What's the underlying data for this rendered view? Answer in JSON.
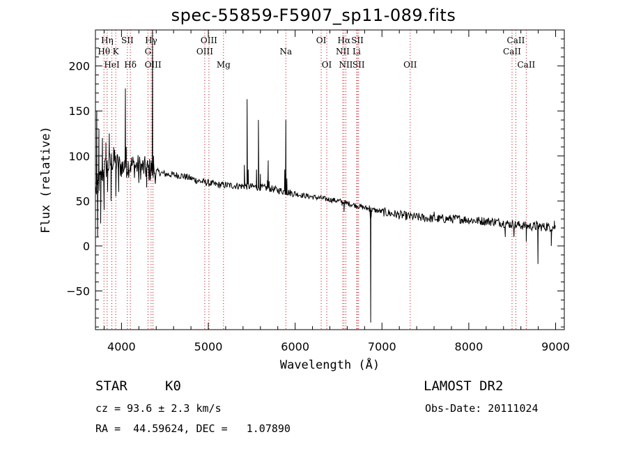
{
  "chart_data": {
    "type": "line",
    "title": "spec-55859-F5907_sp11-089.fits",
    "xlabel": "Wavelength (Å)",
    "ylabel": "Flux (relative)",
    "xlim": [
      3700,
      9100
    ],
    "ylim": [
      -93,
      240
    ],
    "xticks": [
      4000,
      5000,
      6000,
      7000,
      8000,
      9000
    ],
    "yticks": [
      -50,
      0,
      50,
      100,
      150,
      200
    ],
    "continuum": {
      "x": [
        3700,
        3800,
        3900,
        4000,
        4100,
        4200,
        4300,
        4500,
        4700,
        4900,
        5100,
        5300,
        5500,
        5700,
        5900,
        6100,
        6300,
        6500,
        6700,
        6900,
        7100,
        7300,
        7500,
        7700,
        7900,
        8100,
        8300,
        8500,
        8700,
        8900,
        9000
      ],
      "y": [
        60,
        85,
        95,
        88,
        90,
        88,
        85,
        80,
        78,
        72,
        68,
        67,
        66,
        64,
        60,
        56,
        53,
        50,
        45,
        40,
        36,
        33,
        31,
        30,
        30,
        28,
        27,
        24,
        22,
        21,
        21
      ]
    },
    "features": [
      {
        "x": 3715,
        "y": 150
      },
      {
        "x": 3725,
        "y": 10
      },
      {
        "x": 3740,
        "y": 130
      },
      {
        "x": 3760,
        "y": 25
      },
      {
        "x": 3780,
        "y": 120
      },
      {
        "x": 3800,
        "y": 40
      },
      {
        "x": 3820,
        "y": 115
      },
      {
        "x": 3840,
        "y": 60
      },
      {
        "x": 3860,
        "y": 125
      },
      {
        "x": 3880,
        "y": 50
      },
      {
        "x": 3910,
        "y": 110
      },
      {
        "x": 3935,
        "y": 55
      },
      {
        "x": 3968,
        "y": 60
      },
      {
        "x": 4010,
        "y": 80
      },
      {
        "x": 4035,
        "y": 95
      },
      {
        "x": 4045,
        "y": 175
      },
      {
        "x": 4055,
        "y": 110
      },
      {
        "x": 4101,
        "y": 90
      },
      {
        "x": 4200,
        "y": 70
      },
      {
        "x": 4290,
        "y": 65
      },
      {
        "x": 4340,
        "y": 95
      },
      {
        "x": 4357,
        "y": 240
      },
      {
        "x": 4370,
        "y": 100
      },
      {
        "x": 5415,
        "y": 90
      },
      {
        "x": 5447,
        "y": 163
      },
      {
        "x": 5460,
        "y": 85
      },
      {
        "x": 5555,
        "y": 85
      },
      {
        "x": 5577,
        "y": 140
      },
      {
        "x": 5600,
        "y": 80
      },
      {
        "x": 5680,
        "y": 73
      },
      {
        "x": 5690,
        "y": 95
      },
      {
        "x": 5700,
        "y": 72
      },
      {
        "x": 5880,
        "y": 85
      },
      {
        "x": 5893,
        "y": 140
      },
      {
        "x": 5905,
        "y": 75
      },
      {
        "x": 6540,
        "y": 45
      },
      {
        "x": 6563,
        "y": 38
      },
      {
        "x": 6585,
        "y": 46
      },
      {
        "x": 6855,
        "y": 45
      },
      {
        "x": 6866,
        "y": 30
      },
      {
        "x": 6870,
        "y": -85
      },
      {
        "x": 6876,
        "y": 32
      },
      {
        "x": 6890,
        "y": 42
      },
      {
        "x": 7600,
        "y": 38
      },
      {
        "x": 7640,
        "y": 27
      },
      {
        "x": 8400,
        "y": 27
      },
      {
        "x": 8420,
        "y": 10
      },
      {
        "x": 8440,
        "y": 25
      },
      {
        "x": 8520,
        "y": 10
      },
      {
        "x": 8540,
        "y": 20
      },
      {
        "x": 8650,
        "y": 25
      },
      {
        "x": 8662,
        "y": 5
      },
      {
        "x": 8672,
        "y": 22
      },
      {
        "x": 8780,
        "y": 28
      },
      {
        "x": 8797,
        "y": -20
      },
      {
        "x": 8815,
        "y": 25
      },
      {
        "x": 8900,
        "y": 26
      },
      {
        "x": 8950,
        "y": 0
      },
      {
        "x": 8985,
        "y": 28
      }
    ],
    "noise": [
      {
        "range": [
          3700,
          4400
        ],
        "amplitude": 14
      },
      {
        "range": [
          4400,
          6000
        ],
        "amplitude": 4
      },
      {
        "range": [
          6000,
          7000
        ],
        "amplitude": 3
      },
      {
        "range": [
          7000,
          9000
        ],
        "amplitude": 5
      }
    ],
    "lines": [
      {
        "label": "Hη",
        "wavelength": 3835,
        "row": 1
      },
      {
        "label": "Hθ",
        "wavelength": 3798,
        "row": 2
      },
      {
        "label": "HeI",
        "wavelength": 3889,
        "row": 3
      },
      {
        "label": "K",
        "wavelength": 3934,
        "row": 2
      },
      {
        "label": "SII",
        "wavelength": 4068,
        "row": 1
      },
      {
        "label": "Hδ",
        "wavelength": 4102,
        "row": 3
      },
      {
        "label": "Hγ",
        "wavelength": 4341,
        "row": 1
      },
      {
        "label": "G",
        "wavelength": 4305,
        "row": 2
      },
      {
        "label": "OIII",
        "wavelength": 4363,
        "row": 3
      },
      {
        "label": "OIII",
        "wavelength": 5007,
        "row": 1
      },
      {
        "label": "OIII",
        "wavelength": 4959,
        "row": 2
      },
      {
        "label": "Mg",
        "wavelength": 5175,
        "row": 3
      },
      {
        "label": "Na",
        "wavelength": 5893,
        "row": 2
      },
      {
        "label": "OI",
        "wavelength": 6300,
        "row": 1
      },
      {
        "label": "OI",
        "wavelength": 6364,
        "row": 3
      },
      {
        "label": "Hα",
        "wavelength": 6563,
        "row": 1
      },
      {
        "label": "SII",
        "wavelength": 6717,
        "row": 1
      },
      {
        "label": "NII",
        "wavelength": 6548,
        "row": 2
      },
      {
        "label": "Li",
        "wavelength": 6708,
        "row": 2
      },
      {
        "label": "NII",
        "wavelength": 6584,
        "row": 3
      },
      {
        "label": "SII",
        "wavelength": 6731,
        "row": 3
      },
      {
        "label": "OII",
        "wavelength": 7325,
        "row": 3
      },
      {
        "label": "CaII",
        "wavelength": 8542,
        "row": 1
      },
      {
        "label": "CaII",
        "wavelength": 8498,
        "row": 2
      },
      {
        "label": "CaII",
        "wavelength": 8662,
        "row": 3
      }
    ],
    "line_color": "#c4000a"
  },
  "info": {
    "class_label": "STAR",
    "subclass": "K0",
    "survey": "LAMOST DR2",
    "cz": "cz = 93.6 ± 2.3 km/s",
    "obs_date": "Obs-Date: 20111024",
    "coords": "RA =  44.59624, DEC =   1.07890"
  }
}
